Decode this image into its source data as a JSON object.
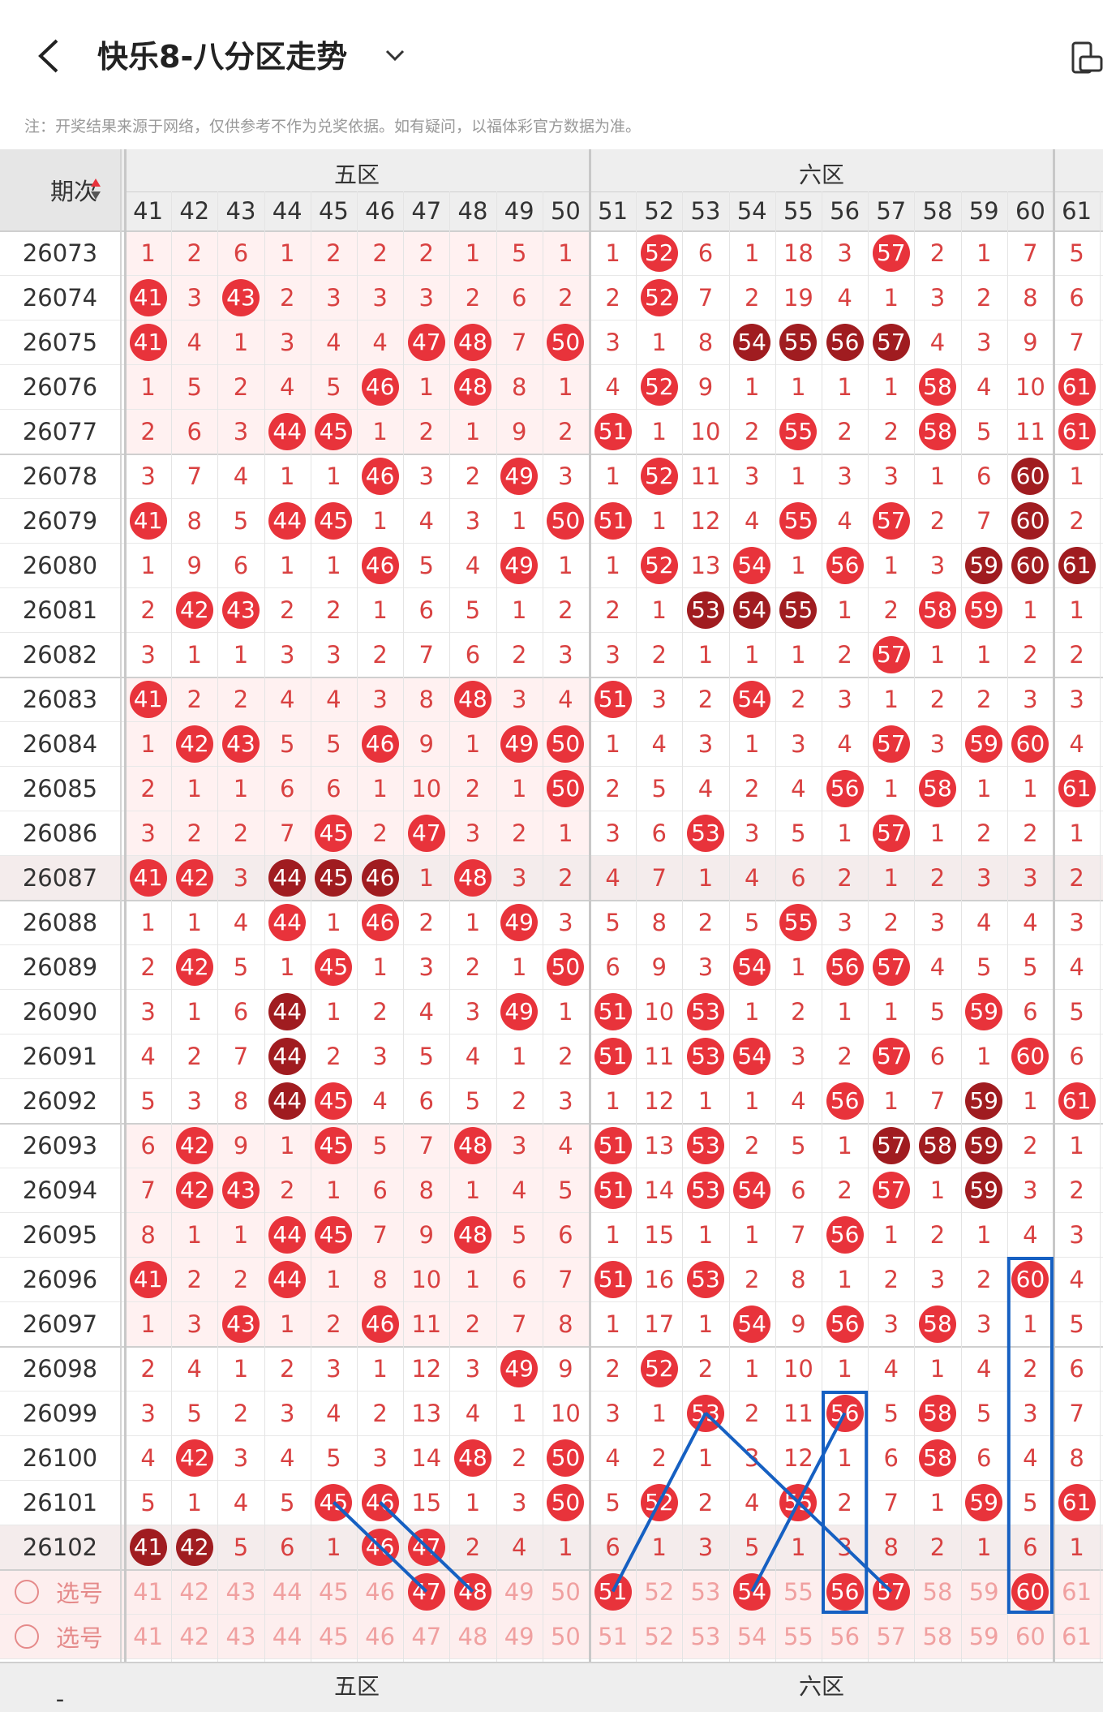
{
  "header": {
    "title": "快乐8-八分区走势",
    "back_icon": "back-chevron-icon",
    "dropdown_icon": "chevron-down-icon",
    "right_icon": "device-rotate-icon"
  },
  "note": "注：开奖结果来源于网络，仅供参考不作为兑奖依据。如有疑问，以福体彩官方数据为准。",
  "table": {
    "period_label": "期次",
    "sort_icon": "sort-arrows-icon",
    "zones": [
      "五区",
      "六区"
    ],
    "columns": [
      41,
      42,
      43,
      44,
      45,
      46,
      47,
      48,
      49,
      50,
      51,
      52,
      53,
      54,
      55,
      56,
      57,
      58,
      59,
      60,
      61
    ],
    "rows": [
      {
        "period": "26073",
        "cells": [
          "1",
          "2",
          "6",
          "1",
          "2",
          "2",
          "2",
          "1",
          "5",
          "1",
          "1",
          "b52",
          "6",
          "1",
          "18",
          "3",
          "b57",
          "2",
          "1",
          "7",
          "5"
        ]
      },
      {
        "period": "26074",
        "cells": [
          "b41",
          "3",
          "b43",
          "2",
          "3",
          "3",
          "3",
          "2",
          "6",
          "2",
          "2",
          "b52",
          "7",
          "2",
          "19",
          "4",
          "1",
          "3",
          "2",
          "8",
          "6"
        ]
      },
      {
        "period": "26075",
        "cells": [
          "b41",
          "4",
          "1",
          "3",
          "4",
          "4",
          "b47",
          "b48",
          "7",
          "b50",
          "3",
          "1",
          "8",
          "d54",
          "d55",
          "d56",
          "d57",
          "4",
          "3",
          "9",
          "7"
        ]
      },
      {
        "period": "26076",
        "cells": [
          "1",
          "5",
          "2",
          "4",
          "5",
          "b46",
          "1",
          "b48",
          "8",
          "1",
          "4",
          "b52",
          "9",
          "1",
          "1",
          "1",
          "1",
          "b58",
          "4",
          "10",
          "b61"
        ]
      },
      {
        "period": "26077",
        "cells": [
          "2",
          "6",
          "3",
          "b44",
          "b45",
          "1",
          "2",
          "1",
          "9",
          "2",
          "b51",
          "1",
          "10",
          "2",
          "b55",
          "2",
          "2",
          "b58",
          "5",
          "11",
          "b61"
        ]
      },
      {
        "period": "26078",
        "cells": [
          "3",
          "7",
          "4",
          "1",
          "1",
          "b46",
          "3",
          "2",
          "b49",
          "3",
          "1",
          "b52",
          "11",
          "3",
          "1",
          "3",
          "3",
          "1",
          "6",
          "d60",
          "1"
        ]
      },
      {
        "period": "26079",
        "cells": [
          "b41",
          "8",
          "5",
          "b44",
          "b45",
          "1",
          "4",
          "3",
          "1",
          "b50",
          "b51",
          "1",
          "12",
          "4",
          "b55",
          "4",
          "b57",
          "2",
          "7",
          "d60",
          "2"
        ]
      },
      {
        "period": "26080",
        "cells": [
          "1",
          "9",
          "6",
          "1",
          "1",
          "b46",
          "5",
          "4",
          "b49",
          "1",
          "1",
          "b52",
          "13",
          "b54",
          "1",
          "b56",
          "1",
          "3",
          "d59",
          "d60",
          "d61"
        ]
      },
      {
        "period": "26081",
        "cells": [
          "2",
          "b42",
          "b43",
          "2",
          "2",
          "1",
          "6",
          "5",
          "1",
          "2",
          "2",
          "1",
          "d53",
          "d54",
          "d55",
          "1",
          "2",
          "b58",
          "b59",
          "1",
          "1"
        ]
      },
      {
        "period": "26082",
        "cells": [
          "3",
          "1",
          "1",
          "3",
          "3",
          "2",
          "7",
          "6",
          "2",
          "3",
          "3",
          "2",
          "1",
          "1",
          "1",
          "2",
          "b57",
          "1",
          "1",
          "2",
          "2"
        ]
      },
      {
        "period": "26083",
        "cells": [
          "b41",
          "2",
          "2",
          "4",
          "4",
          "3",
          "8",
          "b48",
          "3",
          "4",
          "b51",
          "3",
          "2",
          "b54",
          "2",
          "3",
          "1",
          "2",
          "2",
          "3",
          "3"
        ]
      },
      {
        "period": "26084",
        "cells": [
          "1",
          "b42",
          "b43",
          "5",
          "5",
          "b46",
          "9",
          "1",
          "b49",
          "b50",
          "1",
          "4",
          "3",
          "1",
          "3",
          "4",
          "b57",
          "3",
          "b59",
          "b60",
          "4"
        ]
      },
      {
        "period": "26085",
        "cells": [
          "2",
          "1",
          "1",
          "6",
          "6",
          "1",
          "10",
          "2",
          "1",
          "b50",
          "2",
          "5",
          "4",
          "2",
          "4",
          "b56",
          "1",
          "b58",
          "1",
          "1",
          "b61"
        ]
      },
      {
        "period": "26086",
        "cells": [
          "3",
          "2",
          "2",
          "7",
          "b45",
          "2",
          "b47",
          "3",
          "2",
          "1",
          "3",
          "6",
          "b53",
          "3",
          "5",
          "1",
          "b57",
          "1",
          "2",
          "2",
          "1"
        ]
      },
      {
        "period": "26087",
        "cells": [
          "b41",
          "b42",
          "3",
          "d44",
          "d45",
          "d46",
          "1",
          "b48",
          "3",
          "2",
          "4",
          "7",
          "1",
          "4",
          "6",
          "2",
          "1",
          "2",
          "3",
          "3",
          "2"
        ]
      },
      {
        "period": "26088",
        "cells": [
          "1",
          "1",
          "4",
          "b44",
          "1",
          "b46",
          "2",
          "1",
          "b49",
          "3",
          "5",
          "8",
          "2",
          "5",
          "b55",
          "3",
          "2",
          "3",
          "4",
          "4",
          "3"
        ]
      },
      {
        "period": "26089",
        "cells": [
          "2",
          "b42",
          "5",
          "1",
          "b45",
          "1",
          "3",
          "2",
          "1",
          "b50",
          "6",
          "9",
          "3",
          "b54",
          "1",
          "b56",
          "b57",
          "4",
          "5",
          "5",
          "4"
        ]
      },
      {
        "period": "26090",
        "cells": [
          "3",
          "1",
          "6",
          "d44",
          "1",
          "2",
          "4",
          "3",
          "b49",
          "1",
          "b51",
          "10",
          "b53",
          "1",
          "2",
          "1",
          "1",
          "5",
          "b59",
          "6",
          "5"
        ]
      },
      {
        "period": "26091",
        "cells": [
          "4",
          "2",
          "7",
          "d44",
          "2",
          "3",
          "5",
          "4",
          "1",
          "2",
          "b51",
          "11",
          "b53",
          "b54",
          "3",
          "2",
          "b57",
          "6",
          "1",
          "b60",
          "6"
        ]
      },
      {
        "period": "26092",
        "cells": [
          "5",
          "3",
          "8",
          "d44",
          "b45",
          "4",
          "6",
          "5",
          "2",
          "3",
          "1",
          "12",
          "1",
          "1",
          "4",
          "b56",
          "1",
          "7",
          "d59",
          "1",
          "b61"
        ]
      },
      {
        "period": "26093",
        "cells": [
          "6",
          "b42",
          "9",
          "1",
          "b45",
          "5",
          "7",
          "b48",
          "3",
          "4",
          "b51",
          "13",
          "b53",
          "2",
          "5",
          "1",
          "d57",
          "d58",
          "d59",
          "2",
          "1"
        ]
      },
      {
        "period": "26094",
        "cells": [
          "7",
          "b42",
          "b43",
          "2",
          "1",
          "6",
          "8",
          "1",
          "4",
          "5",
          "b51",
          "14",
          "b53",
          "b54",
          "6",
          "2",
          "b57",
          "1",
          "d59",
          "3",
          "2"
        ]
      },
      {
        "period": "26095",
        "cells": [
          "8",
          "1",
          "1",
          "b44",
          "b45",
          "7",
          "9",
          "b48",
          "5",
          "6",
          "1",
          "15",
          "1",
          "1",
          "7",
          "b56",
          "1",
          "2",
          "1",
          "4",
          "3"
        ]
      },
      {
        "period": "26096",
        "cells": [
          "b41",
          "2",
          "2",
          "b44",
          "1",
          "8",
          "10",
          "1",
          "6",
          "7",
          "b51",
          "16",
          "b53",
          "2",
          "8",
          "1",
          "2",
          "3",
          "2",
          "b60",
          "4"
        ]
      },
      {
        "period": "26097",
        "cells": [
          "1",
          "3",
          "b43",
          "1",
          "2",
          "b46",
          "11",
          "2",
          "7",
          "8",
          "1",
          "17",
          "1",
          "b54",
          "9",
          "b56",
          "3",
          "b58",
          "3",
          "1",
          "5"
        ]
      },
      {
        "period": "26098",
        "cells": [
          "2",
          "4",
          "1",
          "2",
          "3",
          "1",
          "12",
          "3",
          "b49",
          "9",
          "2",
          "b52",
          "2",
          "1",
          "10",
          "1",
          "4",
          "1",
          "4",
          "2",
          "6"
        ]
      },
      {
        "period": "26099",
        "cells": [
          "3",
          "5",
          "2",
          "3",
          "4",
          "2",
          "13",
          "4",
          "1",
          "10",
          "3",
          "1",
          "b53",
          "2",
          "11",
          "b56",
          "5",
          "b58",
          "5",
          "3",
          "7"
        ]
      },
      {
        "period": "26100",
        "cells": [
          "4",
          "b42",
          "3",
          "4",
          "5",
          "3",
          "14",
          "b48",
          "2",
          "b50",
          "4",
          "2",
          "1",
          "3",
          "12",
          "1",
          "6",
          "b58",
          "6",
          "4",
          "8"
        ]
      },
      {
        "period": "26101",
        "cells": [
          "5",
          "1",
          "4",
          "5",
          "b45",
          "b46",
          "15",
          "1",
          "3",
          "b50",
          "5",
          "b52",
          "2",
          "4",
          "b55",
          "2",
          "7",
          "1",
          "b59",
          "5",
          "b61"
        ]
      },
      {
        "period": "26102",
        "cells": [
          "d41",
          "d42",
          "5",
          "6",
          "1",
          "b46",
          "b47",
          "2",
          "4",
          "1",
          "6",
          "1",
          "3",
          "5",
          "1",
          "3",
          "8",
          "2",
          "1",
          "6",
          "1"
        ]
      }
    ],
    "select_label": "选号",
    "select_rows": [
      [
        "41",
        "42",
        "43",
        "44",
        "45",
        "46",
        "b47",
        "b48",
        "49",
        "50",
        "b51",
        "52",
        "53",
        "b54",
        "55",
        "b56",
        "b57",
        "58",
        "59",
        "b60",
        "61"
      ],
      [
        "41",
        "42",
        "43",
        "44",
        "45",
        "46",
        "47",
        "48",
        "49",
        "50",
        "51",
        "52",
        "53",
        "54",
        "55",
        "56",
        "57",
        "58",
        "59",
        "60",
        "61"
      ]
    ],
    "footer_period": "-",
    "footer_tick": "0"
  },
  "colors": {
    "ball": "#e8333b",
    "ball_dark": "#a01c20",
    "text_red": "#d94141",
    "line_blue": "#1660c2",
    "header_bg": "#eeeeee",
    "zone_fill": "#fff1f1",
    "select_bg": "#fdeeee"
  }
}
